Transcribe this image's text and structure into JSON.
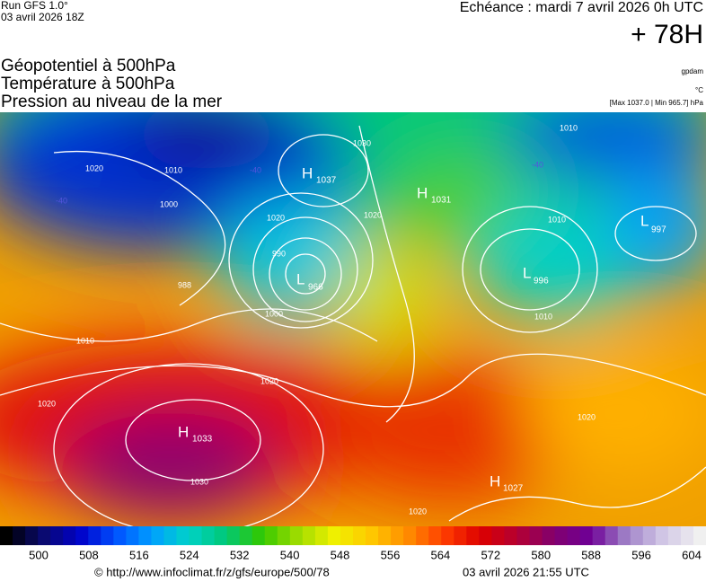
{
  "header": {
    "run": "Run GFS 1.0°",
    "run_date": "03 avril 2026 18Z",
    "valid": "Echéance : mardi 7 avril 2026 0h UTC",
    "lead": "+ 78H",
    "fields": [
      "Géopotentiel à 500hPa",
      "Température à 500hPa",
      "Pression au niveau de la mer"
    ],
    "units": [
      "gpdam",
      "°C"
    ],
    "range": "[Max 1037.0 | Min 965.7] hPa"
  },
  "map": {
    "centers": [
      {
        "type": "H",
        "value": "1037"
      },
      {
        "type": "L",
        "value": "966"
      },
      {
        "type": "H",
        "value": "1031"
      },
      {
        "type": "L",
        "value": "997"
      },
      {
        "type": "L",
        "value": "996"
      },
      {
        "type": "H",
        "value": "1033"
      },
      {
        "type": "H",
        "value": "1027"
      }
    ],
    "isobar_labels": [
      "988",
      "1010",
      "1000",
      "1020",
      "1030",
      "1020",
      "990",
      "1000",
      "1020",
      "1010",
      "1010",
      "1010",
      "1020",
      "1030",
      "1020",
      "1020",
      "1010",
      "1020"
    ],
    "temperature_labels": [
      "-40",
      "-40",
      "-40"
    ]
  },
  "colorbar": {
    "colors": [
      "#000000",
      "#0a0a6e",
      "#0000c8",
      "#0050ff",
      "#00a0ff",
      "#00d2c8",
      "#00c878",
      "#32c800",
      "#a0dc00",
      "#f0f000",
      "#ffc800",
      "#ff8c00",
      "#ff3c00",
      "#dc0000",
      "#b40032",
      "#82006e",
      "#6e0096",
      "#a082c8",
      "#d2c8e6",
      "#f0f0f0"
    ],
    "labels": [
      "500",
      "508",
      "516",
      "524",
      "532",
      "540",
      "548",
      "556",
      "564",
      "572",
      "580",
      "588",
      "596",
      "604"
    ]
  },
  "footer": {
    "url": "© http://www.infoclimat.fr/z/gfs/europe/500/78",
    "timestamp": "03 avril 2026 21:55 UTC"
  }
}
